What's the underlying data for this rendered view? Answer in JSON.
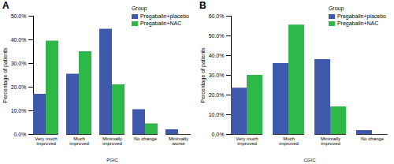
{
  "chart_data": [
    {
      "type": "bar",
      "title": "A",
      "x_label": "PGIC",
      "y_label": "Percentage of patients",
      "categories": [
        "Very much improved",
        "Much improved",
        "Minimally improved",
        "No change",
        "Minimally worse"
      ],
      "series": [
        {
          "name": "Pregabalin+placebo",
          "color": "#3e58ac",
          "values": [
            17,
            25.5,
            44.5,
            10.5,
            2
          ]
        },
        {
          "name": "Pregabalin+NAC",
          "color": "#2eb848",
          "values": [
            39.5,
            35,
            21,
            4.5,
            0
          ]
        }
      ],
      "ylim": [
        0,
        50
      ],
      "yticks": [
        {
          "value": 0,
          "label": "0.0%"
        },
        {
          "value": 10,
          "label": "10.0%"
        },
        {
          "value": 20,
          "label": "20.0%"
        },
        {
          "value": 30,
          "label": "30.0%"
        },
        {
          "value": 40,
          "label": "40.0%"
        },
        {
          "value": 50,
          "label": "50.0%"
        }
      ],
      "grid": false,
      "legend": "top-right",
      "legend_title": "Group"
    },
    {
      "type": "bar",
      "title": "B",
      "x_label": "CGIC",
      "y_label": "Percentage of patients",
      "categories": [
        "Very much improved",
        "Much improved",
        "Minimally improved",
        "No change"
      ],
      "series": [
        {
          "name": "Pregabalin+placebo",
          "color": "#3e58ac",
          "values": [
            23.5,
            36,
            38,
            2
          ]
        },
        {
          "name": "Pregabalin+NAC",
          "color": "#2eb848",
          "values": [
            30,
            55.5,
            14,
            0
          ]
        }
      ],
      "ylim": [
        0,
        60
      ],
      "yticks": [
        {
          "value": 0,
          "label": "0.0%"
        },
        {
          "value": 10,
          "label": "10.0%"
        },
        {
          "value": 20,
          "label": "20.0%"
        },
        {
          "value": 30,
          "label": "30.0%"
        },
        {
          "value": 40,
          "label": "40.0%"
        },
        {
          "value": 50,
          "label": "50.0%"
        },
        {
          "value": 60,
          "label": "60.0%"
        }
      ],
      "grid": false,
      "legend": "top-right",
      "legend_title": "Group"
    }
  ]
}
